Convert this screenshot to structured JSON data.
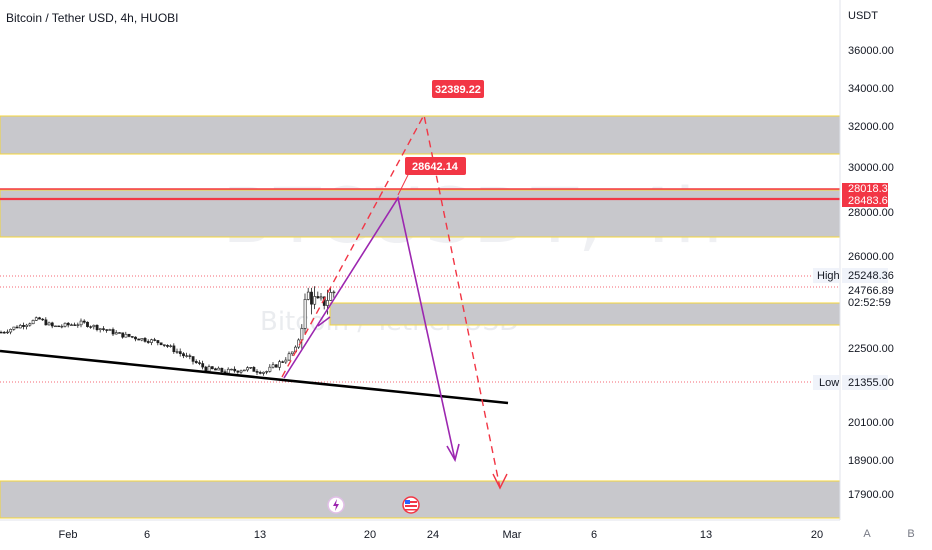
{
  "header": {
    "title": "Bitcoin / Tether USD, 4h, HUOBI"
  },
  "watermark": {
    "symbol": "BTCUSDT, 4h",
    "description": "Bitcoin / Tether USD"
  },
  "price_axis": {
    "currency": "USDT",
    "ticks": [
      "36000.00",
      "34000.00",
      "32000.00",
      "30000.00",
      "28000.00",
      "26000.00",
      "22500.00",
      "20100.00",
      "18900.00",
      "17900.00"
    ]
  },
  "time_axis": {
    "ticks": [
      "Feb",
      "6",
      "13",
      "20",
      "24",
      "Mar",
      "6",
      "13",
      "20"
    ]
  },
  "labels": {
    "red_price_top": "28018.35",
    "red_price": "28483.65",
    "high_label": "High",
    "high_value": "25248.36",
    "current_price": "24766.89",
    "countdown": "02:52:59",
    "low_label": "Low",
    "low_value": "21355.00"
  },
  "annotations": {
    "target_1": "28642.14",
    "target_2": "32389.22"
  },
  "buttons": {
    "auto": "A",
    "bottom": "B"
  },
  "colors": {
    "zone": "#c8c8cc",
    "zone_border": "#f7e36b",
    "red": "#f23645",
    "purple": "#9c27b0",
    "trend": "#000000"
  },
  "chart_data": {
    "type": "candlestick",
    "title": "Bitcoin / Tether USD, 4h, HUOBI",
    "y_unit": "USDT",
    "close_path": [
      [
        "Jan 31",
        23100
      ],
      [
        "Feb 2",
        23600
      ],
      [
        "Feb 3",
        23300
      ],
      [
        "Feb 4",
        23450
      ],
      [
        "Feb 6",
        23000
      ],
      [
        "Feb 8",
        22700
      ],
      [
        "Feb 9",
        21800
      ],
      [
        "Feb 10",
        21700
      ],
      [
        "Feb 12",
        21800
      ],
      [
        "Feb 13",
        21700
      ],
      [
        "Feb 14",
        22100
      ],
      [
        "Feb 15",
        22500
      ],
      [
        "Feb 16",
        24600
      ],
      [
        "Feb 17",
        24100
      ],
      [
        "Feb 18",
        24700
      ]
    ],
    "horizontal_levels": [
      28018.35,
      28483.65
    ],
    "zones": [
      [
        30900,
        32500
      ],
      [
        26700,
        28800
      ],
      [
        23700,
        24150
      ],
      [
        17200,
        18300
      ]
    ],
    "projections": [
      {
        "label": "28642.14",
        "from": [
          "Feb 14",
          21700
        ],
        "to": [
          "Feb 22",
          28642.14
        ],
        "then": [
          "Feb 25",
          19200
        ]
      },
      {
        "label": "32389.22",
        "from": [
          "Feb 14",
          21700
        ],
        "to": [
          "Feb 22",
          32389.22
        ],
        "then": [
          "Feb 28",
          18700
        ]
      }
    ]
  }
}
